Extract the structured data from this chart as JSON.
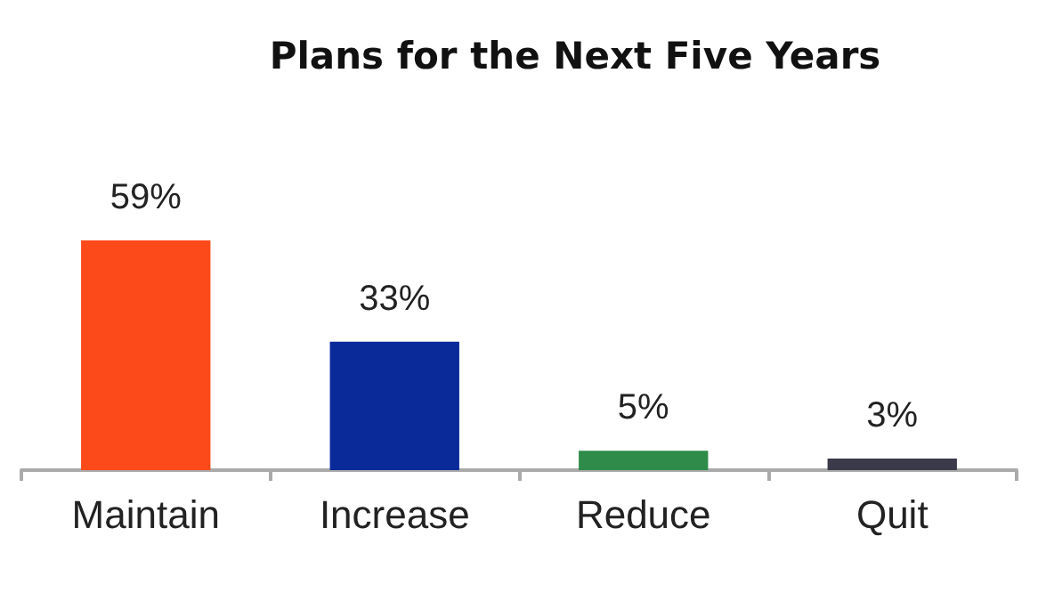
{
  "chart_data": {
    "type": "bar",
    "title": "Plans for the Next Five Years",
    "categories": [
      "Maintain",
      "Increase",
      "Reduce",
      "Quit"
    ],
    "values": [
      59,
      33,
      5,
      3
    ],
    "colors": [
      "#fc4a1a",
      "#0a2a9a",
      "#2e8b4a",
      "#3a3a4a"
    ],
    "value_labels": [
      "59%",
      "33%",
      "5%",
      "3%"
    ]
  }
}
